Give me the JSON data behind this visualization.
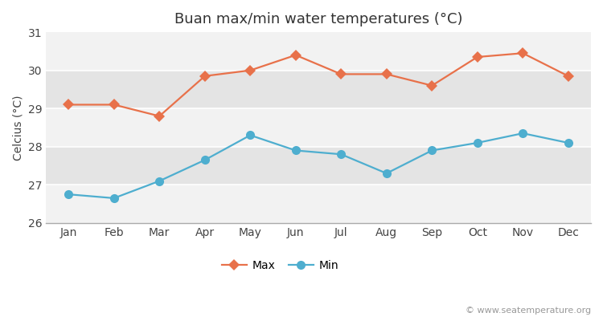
{
  "title": "Buan max/min water temperatures (°C)",
  "ylabel": "Celcius (°C)",
  "months": [
    "Jan",
    "Feb",
    "Mar",
    "Apr",
    "May",
    "Jun",
    "Jul",
    "Aug",
    "Sep",
    "Oct",
    "Nov",
    "Dec"
  ],
  "max_temps": [
    29.1,
    29.1,
    28.8,
    29.85,
    30.0,
    30.4,
    29.9,
    29.9,
    29.6,
    30.35,
    30.45,
    29.85
  ],
  "min_temps": [
    26.75,
    26.65,
    27.1,
    27.65,
    28.3,
    27.9,
    27.8,
    27.3,
    27.9,
    28.1,
    28.35,
    28.1
  ],
  "max_color": "#e8714a",
  "min_color": "#4eaecf",
  "bg_color": "#ffffff",
  "stripe_light": "#f2f2f2",
  "stripe_dark": "#e4e4e4",
  "ylim": [
    26,
    31
  ],
  "yticks": [
    26,
    27,
    28,
    29,
    30,
    31
  ],
  "watermark": "© www.seatemperature.org",
  "legend_max": "Max",
  "legend_min": "Min",
  "title_fontsize": 13,
  "label_fontsize": 10,
  "tick_fontsize": 10,
  "watermark_fontsize": 8
}
